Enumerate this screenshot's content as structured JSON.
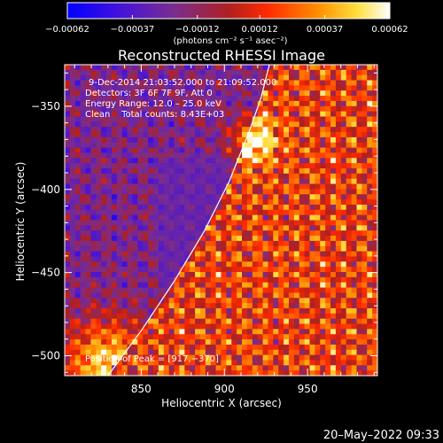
{
  "chart_data": {
    "type": "heatmap",
    "title": "Reconstructed RHESSI Image",
    "xlabel": "Heliocentric X (arcsec)",
    "ylabel": "Heliocentric Y (arcsec)",
    "xlim": [
      804,
      992
    ],
    "ylim": [
      -512,
      -325
    ],
    "x_ticks": [
      850,
      900,
      950
    ],
    "y_ticks": [
      -350,
      -400,
      -450,
      -500
    ],
    "y_tick_labels": [
      "−350",
      "−400",
      "−450",
      "−500"
    ],
    "colorbar": {
      "range": [
        -0.00062,
        0.00062
      ],
      "ticks": [
        -0.00062,
        -0.00037,
        -0.00012,
        0.00012,
        0.00037,
        0.00062
      ],
      "tick_labels": [
        "−0.00062",
        "−0.00037",
        "−0.00012",
        "0.00012",
        "0.00037",
        "0.00062"
      ],
      "unit_label": "(photons cm⁻² s⁻¹ asec⁻²)"
    },
    "annotations": [
      "9-Dec-2014 21:03:52.000 to 21:09:52.000",
      "Detectors: 3F 6F 7F 9F, Att 0",
      "Energy Range: 12.0 – 25.0 keV",
      "Clean    Total counts: 8.43E+03"
    ],
    "peak_label": "Position of Peak = [917,−370]",
    "peak": [
      917,
      -370
    ],
    "limb_curve": [
      [
        830,
        -512
      ],
      [
        850,
        -485
      ],
      [
        870,
        -455
      ],
      [
        888,
        -425
      ],
      [
        903,
        -395
      ],
      [
        915,
        -365
      ],
      [
        922,
        -345
      ],
      [
        927,
        -325
      ]
    ],
    "grid": false,
    "colormap": [
      "#0000ff",
      "#6020c0",
      "#7a2d8f",
      "#b02828",
      "#ff2000",
      "#ff8c00",
      "#ffe040",
      "#ffffff"
    ]
  },
  "footer": {
    "date": "20–May–2022 09:33"
  }
}
